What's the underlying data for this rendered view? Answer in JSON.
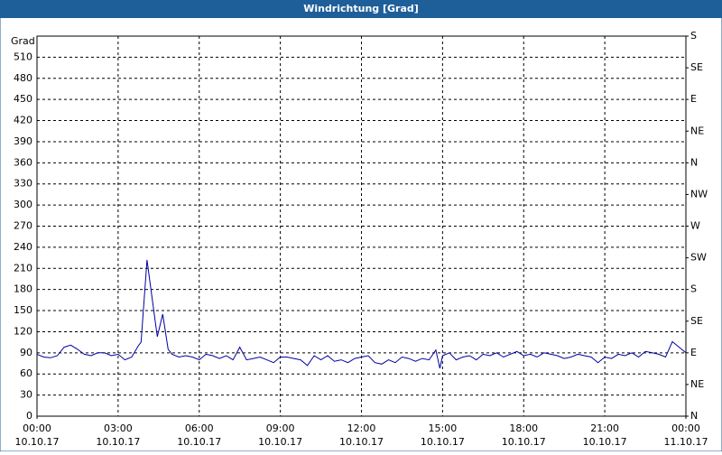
{
  "window": {
    "title": "Windrichtung [Grad]"
  },
  "chart_data": {
    "type": "line",
    "y_label": "Grad",
    "x": [
      0,
      0.25,
      0.5,
      0.75,
      1,
      1.25,
      1.5,
      1.75,
      2,
      2.25,
      2.5,
      2.75,
      3,
      3.25,
      3.5,
      3.75,
      3.85,
      4.07,
      4.25,
      4.45,
      4.65,
      4.85,
      5,
      5.25,
      5.5,
      5.75,
      6,
      6.25,
      6.5,
      6.75,
      7,
      7.25,
      7.5,
      7.75,
      8,
      8.25,
      8.5,
      8.75,
      9,
      9.25,
      9.5,
      9.75,
      10,
      10.25,
      10.5,
      10.75,
      11,
      11.25,
      11.5,
      11.75,
      12,
      12.25,
      12.5,
      12.75,
      13,
      13.25,
      13.5,
      13.75,
      14,
      14.25,
      14.5,
      14.75,
      14.9,
      15,
      15.25,
      15.5,
      15.75,
      16,
      16.25,
      16.5,
      16.75,
      17,
      17.25,
      17.5,
      17.75,
      18,
      18.25,
      18.5,
      18.75,
      19,
      19.25,
      19.5,
      19.75,
      20,
      20.25,
      20.5,
      20.75,
      21,
      21.25,
      21.5,
      21.75,
      22,
      22.25,
      22.5,
      22.75,
      23,
      23.25,
      23.5,
      23.75,
      24
    ],
    "series": [
      {
        "name": "Windrichtung",
        "color": "#0000a0",
        "values": [
          88,
          84,
          83,
          86,
          98,
          101,
          95,
          88,
          86,
          90,
          90,
          86,
          88,
          80,
          84,
          100,
          105,
          222,
          170,
          113,
          145,
          95,
          88,
          84,
          86,
          84,
          80,
          88,
          86,
          82,
          86,
          80,
          98,
          80,
          82,
          84,
          80,
          76,
          84,
          84,
          82,
          80,
          72,
          86,
          80,
          86,
          78,
          80,
          76,
          82,
          84,
          86,
          76,
          74,
          80,
          76,
          84,
          82,
          78,
          82,
          80,
          94,
          68,
          86,
          90,
          80,
          84,
          86,
          80,
          88,
          86,
          90,
          84,
          88,
          92,
          86,
          88,
          84,
          90,
          88,
          86,
          82,
          84,
          88,
          86,
          84,
          76,
          84,
          82,
          88,
          86,
          90,
          84,
          92,
          90,
          88,
          84,
          106,
          98,
          90
        ]
      }
    ],
    "xlim": [
      0,
      24
    ],
    "xticks": [
      {
        "value": 0,
        "label": "00:00"
      },
      {
        "value": 3,
        "label": "03:00"
      },
      {
        "value": 6,
        "label": "06:00"
      },
      {
        "value": 9,
        "label": "09:00"
      },
      {
        "value": 12,
        "label": "12:00"
      },
      {
        "value": 15,
        "label": "15:00"
      },
      {
        "value": 18,
        "label": "18:00"
      },
      {
        "value": 21,
        "label": "21:00"
      },
      {
        "value": 24,
        "label": "00:00"
      }
    ],
    "xtick_dates": [
      "10.10.17",
      "10.10.17",
      "10.10.17",
      "10.10.17",
      "10.10.17",
      "10.10.17",
      "10.10.17",
      "10.10.17",
      "11.10.17"
    ],
    "ylim": [
      0,
      540
    ],
    "yticks": [
      0,
      30,
      60,
      90,
      120,
      150,
      180,
      210,
      240,
      270,
      300,
      330,
      360,
      390,
      420,
      450,
      480,
      510
    ],
    "y2lim": [
      0,
      540
    ],
    "y2ticks": [
      {
        "value": 0,
        "label": "N"
      },
      {
        "value": 45,
        "label": "NE"
      },
      {
        "value": 90,
        "label": "E"
      },
      {
        "value": 135,
        "label": "SE"
      },
      {
        "value": 180,
        "label": "S"
      },
      {
        "value": 225,
        "label": "SW"
      },
      {
        "value": 270,
        "label": "W"
      },
      {
        "value": 315,
        "label": "NW"
      },
      {
        "value": 360,
        "label": "N"
      },
      {
        "value": 405,
        "label": "NE"
      },
      {
        "value": 450,
        "label": "E"
      },
      {
        "value": 495,
        "label": "SE"
      },
      {
        "value": 540,
        "label": "S"
      }
    ],
    "grid": true
  }
}
